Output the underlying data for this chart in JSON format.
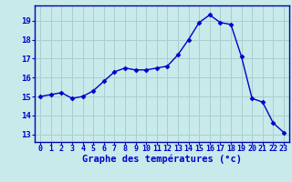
{
  "x": [
    0,
    1,
    2,
    3,
    4,
    5,
    6,
    7,
    8,
    9,
    10,
    11,
    12,
    13,
    14,
    15,
    16,
    17,
    18,
    19,
    20,
    21,
    22,
    23
  ],
  "y": [
    15.0,
    15.1,
    15.2,
    14.9,
    15.0,
    15.3,
    15.8,
    16.3,
    16.5,
    16.4,
    16.4,
    16.5,
    16.6,
    17.2,
    18.0,
    18.9,
    19.3,
    18.9,
    18.8,
    17.1,
    14.9,
    14.7,
    13.6,
    13.1
  ],
  "line_color": "#0000cc",
  "marker": "D",
  "marker_size": 2.5,
  "bg_color": "#c8eaea",
  "grid_color": "#a8d0d0",
  "xlabel": "Graphe des températures (°c)",
  "tick_color": "#0000cc",
  "xlim": [
    -0.5,
    23.5
  ],
  "ylim": [
    12.6,
    19.8
  ],
  "yticks": [
    13,
    14,
    15,
    16,
    17,
    18,
    19
  ],
  "xticks": [
    0,
    1,
    2,
    3,
    4,
    5,
    6,
    7,
    8,
    9,
    10,
    11,
    12,
    13,
    14,
    15,
    16,
    17,
    18,
    19,
    20,
    21,
    22,
    23
  ],
  "xtick_labels": [
    "0",
    "1",
    "2",
    "3",
    "4",
    "5",
    "6",
    "7",
    "8",
    "9",
    "10",
    "11",
    "12",
    "13",
    "14",
    "15",
    "16",
    "17",
    "18",
    "19",
    "20",
    "21",
    "22",
    "23"
  ],
  "ytick_labels": [
    "13",
    "14",
    "15",
    "16",
    "17",
    "18",
    "19"
  ],
  "spine_color": "#0000aa",
  "xlabel_fontsize": 7.5,
  "tick_fontsize": 6.0,
  "ytick_fontsize": 6.5
}
